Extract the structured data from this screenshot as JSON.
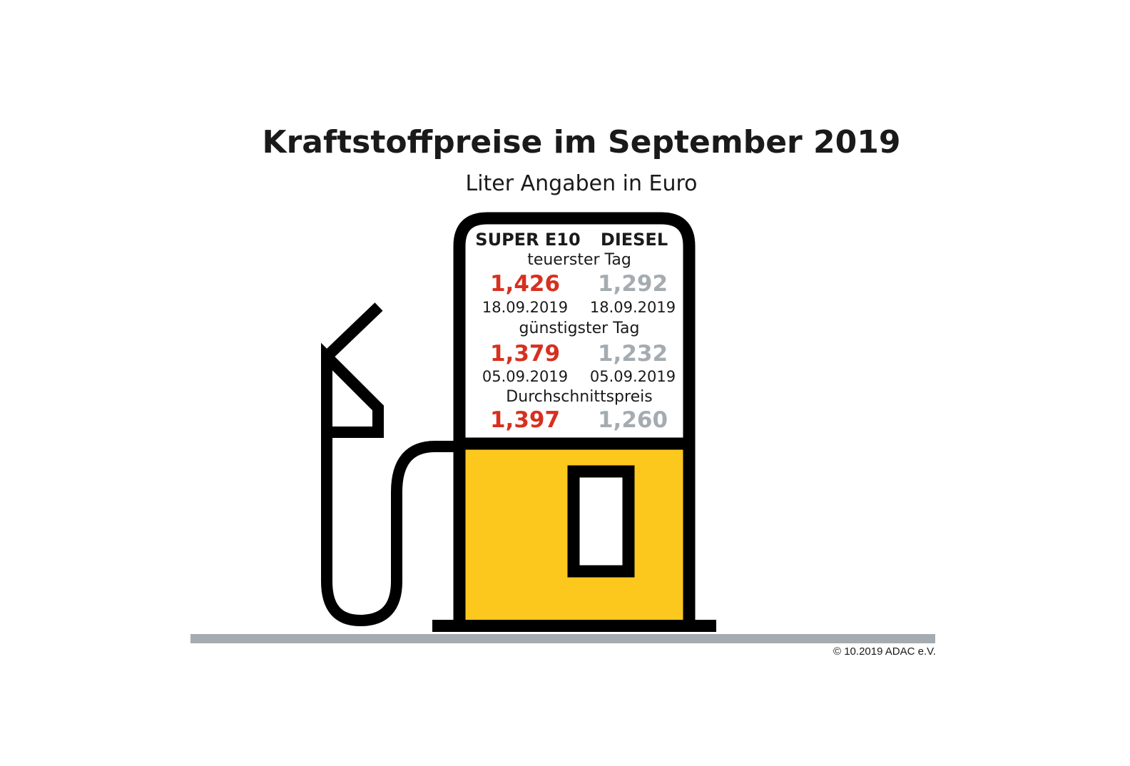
{
  "title": "Kraftstoffpreise im September 2019",
  "subtitle": "Liter Angaben in Euro",
  "columns": [
    "SUPER E10",
    "DIESEL"
  ],
  "rows": [
    {
      "label": "teuerster Tag",
      "e10": {
        "price": "1,426",
        "date": "18.09.2019"
      },
      "diesel": {
        "price": "1,292",
        "date": "18.09.2019"
      }
    },
    {
      "label": "günstigster Tag",
      "e10": {
        "price": "1,379",
        "date": "05.09.2019"
      },
      "diesel": {
        "price": "1,232",
        "date": "05.09.2019"
      }
    },
    {
      "label": "Durchschnittspreis",
      "e10": {
        "price": "1,397"
      },
      "diesel": {
        "price": "1,260"
      }
    }
  ],
  "copyright": "© 10.2019  ADAC e.V.",
  "colors": {
    "e10": "#d7301f",
    "diesel": "#a5acb1",
    "pump": "#fcc81e",
    "ground": "#a5acb1"
  },
  "icon": "fuel-pump-icon"
}
